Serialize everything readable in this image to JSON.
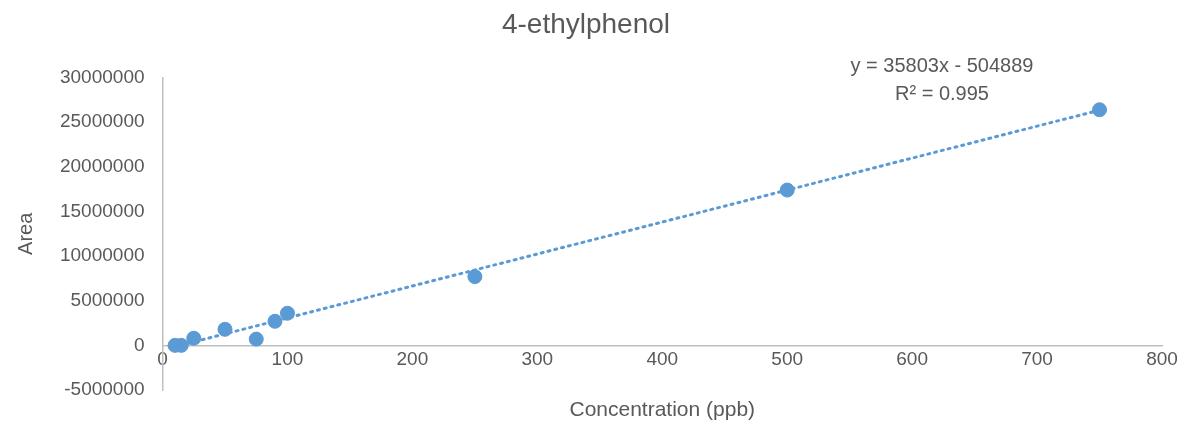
{
  "chart_data": {
    "type": "scatter",
    "title": "4-ethylphenol",
    "xlabel": "Concentration (ppb)",
    "ylabel": "Area",
    "series": [
      {
        "type": "scatter",
        "color": "#5b9bd5",
        "x": [
          10,
          15,
          25,
          50,
          75,
          90,
          100,
          250,
          500,
          750
        ],
        "values": [
          0,
          0,
          800000,
          1800000,
          700000,
          2700000,
          3600000,
          7700000,
          17400000,
          26400000
        ]
      },
      {
        "type": "line",
        "color": "#5b9bd5",
        "line_style": "dotted",
        "marker": "none",
        "x": [
          10,
          750
        ],
        "values": [
          -150000,
          26350000
        ]
      }
    ],
    "marker": "circle",
    "xlim": [
      0,
      800
    ],
    "xticks": [
      0,
      100,
      200,
      300,
      400,
      500,
      600,
      700,
      800
    ],
    "ylim": [
      -5000000,
      30000000
    ],
    "yticks": [
      -5000000,
      0,
      5000000,
      10000000,
      15000000,
      20000000,
      25000000,
      30000000
    ],
    "grid": false,
    "legend": false,
    "annotations": [
      "y = 35803x - 504889",
      "R² = 0.995"
    ]
  }
}
